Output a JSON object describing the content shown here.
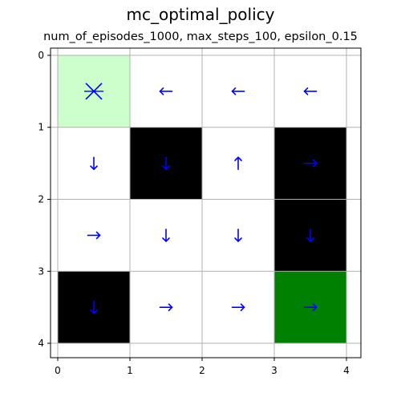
{
  "figure": {
    "suptitle": "mc_optimal_policy",
    "subtitle": "num_of_episodes_1000, max_steps_100, epsilon_0.15"
  },
  "chart_data": {
    "type": "heatmap",
    "title": "num_of_episodes_1000, max_steps_100, epsilon_0.15",
    "xlabel": "",
    "ylabel": "",
    "xlim": [
      -0.1,
      4.2
    ],
    "ylim": [
      4.2,
      -0.1
    ],
    "y_inverted": true,
    "xticks": [
      0,
      1,
      2,
      3,
      4
    ],
    "yticks": [
      0,
      1,
      2,
      3,
      4
    ],
    "grid": true,
    "grid_shape": [
      4,
      4
    ],
    "start_cell": [
      0,
      0
    ],
    "goal_cell": [
      3,
      3
    ],
    "walls": [
      [
        1,
        1
      ],
      [
        1,
        3
      ],
      [
        2,
        3
      ],
      [
        3,
        0
      ]
    ],
    "policy": [
      [
        "start",
        "left",
        "left",
        "left"
      ],
      [
        "down",
        "down",
        "up",
        "right"
      ],
      [
        "right",
        "down",
        "down",
        "down"
      ],
      [
        "down",
        "right",
        "right",
        "right"
      ]
    ],
    "colors": {
      "start": "#ccffcc",
      "goal": "#008000",
      "wall": "#000000",
      "empty": "#ffffff",
      "arrow": "#0000ff",
      "grid": "#b0b0b0"
    }
  }
}
